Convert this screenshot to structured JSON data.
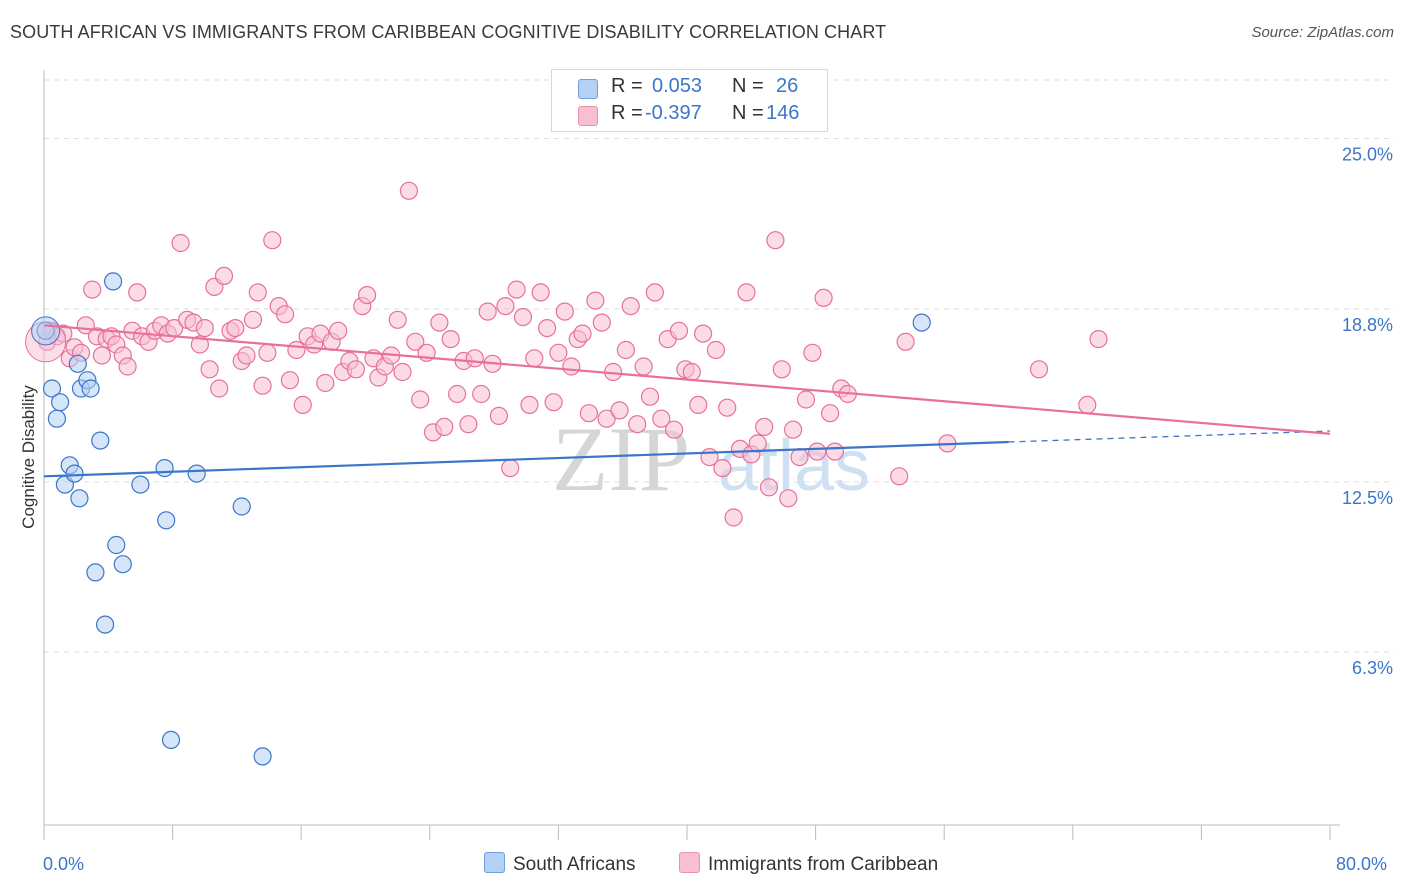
{
  "title": "SOUTH AFRICAN VS IMMIGRANTS FROM CARIBBEAN COGNITIVE DISABILITY CORRELATION CHART",
  "source": "Source: ZipAtlas.com",
  "watermark": {
    "zip": "ZIP",
    "atlas": "atlas"
  },
  "legend": {
    "r_label": "R =",
    "n_label": "N =",
    "series": [
      {
        "name": "South Africans",
        "r": "0.053",
        "n": "26"
      },
      {
        "name": "Immigrants from Caribbean",
        "r": "-0.397",
        "n": "146"
      }
    ]
  },
  "chart_data": {
    "type": "scatter",
    "title": "SOUTH AFRICAN VS IMMIGRANTS FROM CARIBBEAN COGNITIVE DISABILITY CORRELATION CHART",
    "xlabel": "",
    "ylabel": "Cognitive Disability",
    "xlim": [
      0,
      80
    ],
    "ylim": [
      0,
      27.5
    ],
    "x_tick_labels": [
      "0.0%",
      "80.0%"
    ],
    "y_ticks": [
      6.3,
      12.5,
      18.8,
      25.0
    ],
    "y_tick_labels": [
      "6.3%",
      "12.5%",
      "18.8%",
      "25.0%"
    ],
    "colors": {
      "blue": "#3b76c9",
      "blue_fill": "#b5d0f2",
      "pink": "#e8709a",
      "pink_fill": "#f7bfd1"
    },
    "series": [
      {
        "name": "South Africans",
        "color": "blue",
        "trend": {
          "x0": 0,
          "y0": 12.7,
          "x1": 60,
          "y1": 13.95,
          "dash_to_x": 80,
          "dash_to_y": 14.35
        },
        "points": [
          [
            0.1,
            18.0
          ],
          [
            0.5,
            15.9
          ],
          [
            0.8,
            14.8
          ],
          [
            1.0,
            15.4
          ],
          [
            1.3,
            12.4
          ],
          [
            1.6,
            13.1
          ],
          [
            1.9,
            12.8
          ],
          [
            2.1,
            16.8
          ],
          [
            2.2,
            11.9
          ],
          [
            2.3,
            15.9
          ],
          [
            2.7,
            16.2
          ],
          [
            2.9,
            15.9
          ],
          [
            3.2,
            9.2
          ],
          [
            3.5,
            14.0
          ],
          [
            3.8,
            7.3
          ],
          [
            4.3,
            19.8
          ],
          [
            4.5,
            10.2
          ],
          [
            4.9,
            9.5
          ],
          [
            6.0,
            12.4
          ],
          [
            7.5,
            13.0
          ],
          [
            7.6,
            11.1
          ],
          [
            7.9,
            3.1
          ],
          [
            9.5,
            12.8
          ],
          [
            12.3,
            11.6
          ],
          [
            13.6,
            2.5
          ],
          [
            54.6,
            18.3
          ]
        ]
      },
      {
        "name": "Immigrants from Caribbean",
        "color": "pink",
        "trend": {
          "x0": 0,
          "y0": 18.2,
          "x1": 80,
          "y1": 14.25
        },
        "points": [
          [
            0.2,
            17.6
          ],
          [
            0.5,
            18.0
          ],
          [
            0.8,
            17.8
          ],
          [
            1.2,
            17.9
          ],
          [
            1.6,
            17.0
          ],
          [
            1.9,
            17.4
          ],
          [
            2.3,
            17.2
          ],
          [
            2.6,
            18.2
          ],
          [
            3.0,
            19.5
          ],
          [
            3.3,
            17.8
          ],
          [
            3.6,
            17.1
          ],
          [
            3.9,
            17.7
          ],
          [
            4.2,
            17.8
          ],
          [
            4.5,
            17.5
          ],
          [
            4.9,
            17.1
          ],
          [
            5.2,
            16.7
          ],
          [
            5.5,
            18.0
          ],
          [
            5.8,
            19.4
          ],
          [
            6.1,
            17.8
          ],
          [
            6.5,
            17.6
          ],
          [
            6.9,
            18.0
          ],
          [
            7.3,
            18.2
          ],
          [
            7.7,
            17.9
          ],
          [
            8.1,
            18.1
          ],
          [
            8.5,
            21.2
          ],
          [
            8.9,
            18.4
          ],
          [
            9.3,
            18.3
          ],
          [
            9.7,
            17.5
          ],
          [
            10.0,
            18.1
          ],
          [
            10.3,
            16.6
          ],
          [
            10.6,
            19.6
          ],
          [
            10.9,
            15.9
          ],
          [
            11.2,
            20.0
          ],
          [
            11.6,
            18.0
          ],
          [
            11.9,
            18.1
          ],
          [
            12.3,
            16.9
          ],
          [
            12.6,
            17.1
          ],
          [
            13.0,
            18.4
          ],
          [
            13.3,
            19.4
          ],
          [
            13.6,
            16.0
          ],
          [
            13.9,
            17.2
          ],
          [
            14.2,
            21.3
          ],
          [
            14.6,
            18.9
          ],
          [
            15.0,
            18.6
          ],
          [
            15.3,
            16.2
          ],
          [
            15.7,
            17.3
          ],
          [
            16.1,
            15.3
          ],
          [
            16.4,
            17.8
          ],
          [
            16.8,
            17.5
          ],
          [
            17.2,
            17.9
          ],
          [
            17.5,
            16.1
          ],
          [
            17.9,
            17.6
          ],
          [
            18.3,
            18.0
          ],
          [
            18.6,
            16.5
          ],
          [
            19.0,
            16.9
          ],
          [
            19.4,
            16.6
          ],
          [
            19.8,
            18.9
          ],
          [
            20.1,
            19.3
          ],
          [
            20.5,
            17.0
          ],
          [
            20.8,
            16.3
          ],
          [
            21.2,
            16.7
          ],
          [
            21.6,
            17.1
          ],
          [
            22.0,
            18.4
          ],
          [
            22.3,
            16.5
          ],
          [
            22.7,
            23.1
          ],
          [
            23.1,
            17.6
          ],
          [
            23.4,
            15.5
          ],
          [
            23.8,
            17.2
          ],
          [
            24.2,
            14.3
          ],
          [
            24.6,
            18.3
          ],
          [
            24.9,
            14.5
          ],
          [
            25.3,
            17.7
          ],
          [
            25.7,
            15.7
          ],
          [
            26.1,
            16.9
          ],
          [
            26.4,
            14.6
          ],
          [
            26.8,
            17.0
          ],
          [
            27.2,
            15.7
          ],
          [
            27.6,
            18.7
          ],
          [
            27.9,
            16.8
          ],
          [
            28.3,
            14.9
          ],
          [
            28.7,
            18.9
          ],
          [
            29.0,
            13.0
          ],
          [
            29.4,
            19.5
          ],
          [
            29.8,
            18.5
          ],
          [
            30.2,
            15.3
          ],
          [
            30.5,
            17.0
          ],
          [
            30.9,
            19.4
          ],
          [
            31.3,
            18.1
          ],
          [
            31.7,
            15.4
          ],
          [
            32.0,
            17.2
          ],
          [
            32.4,
            18.7
          ],
          [
            32.8,
            16.7
          ],
          [
            33.2,
            17.7
          ],
          [
            33.5,
            17.9
          ],
          [
            33.9,
            15.0
          ],
          [
            34.3,
            19.1
          ],
          [
            34.7,
            18.3
          ],
          [
            35.0,
            14.8
          ],
          [
            35.4,
            16.5
          ],
          [
            35.8,
            15.1
          ],
          [
            36.2,
            17.3
          ],
          [
            36.5,
            18.9
          ],
          [
            36.9,
            14.6
          ],
          [
            37.3,
            16.7
          ],
          [
            37.7,
            15.6
          ],
          [
            38.0,
            19.4
          ],
          [
            38.4,
            14.8
          ],
          [
            38.8,
            17.7
          ],
          [
            39.2,
            14.4
          ],
          [
            39.5,
            18.0
          ],
          [
            39.9,
            16.6
          ],
          [
            40.3,
            16.5
          ],
          [
            40.7,
            15.3
          ],
          [
            41.0,
            17.9
          ],
          [
            41.4,
            13.4
          ],
          [
            41.8,
            17.3
          ],
          [
            42.2,
            13.0
          ],
          [
            42.5,
            15.2
          ],
          [
            42.9,
            11.2
          ],
          [
            43.3,
            13.7
          ],
          [
            43.7,
            19.4
          ],
          [
            44.0,
            13.5
          ],
          [
            44.4,
            13.9
          ],
          [
            44.8,
            14.5
          ],
          [
            45.1,
            12.3
          ],
          [
            45.5,
            21.3
          ],
          [
            45.9,
            16.6
          ],
          [
            46.3,
            11.9
          ],
          [
            46.6,
            14.4
          ],
          [
            47.0,
            13.4
          ],
          [
            47.4,
            15.5
          ],
          [
            47.8,
            17.2
          ],
          [
            48.1,
            13.6
          ],
          [
            48.5,
            19.2
          ],
          [
            48.9,
            15.0
          ],
          [
            49.2,
            13.6
          ],
          [
            49.6,
            15.9
          ],
          [
            50.0,
            15.7
          ],
          [
            53.2,
            12.7
          ],
          [
            53.6,
            17.6
          ],
          [
            56.2,
            13.9
          ],
          [
            61.9,
            16.6
          ],
          [
            64.9,
            15.3
          ],
          [
            65.6,
            17.7
          ]
        ]
      }
    ]
  }
}
